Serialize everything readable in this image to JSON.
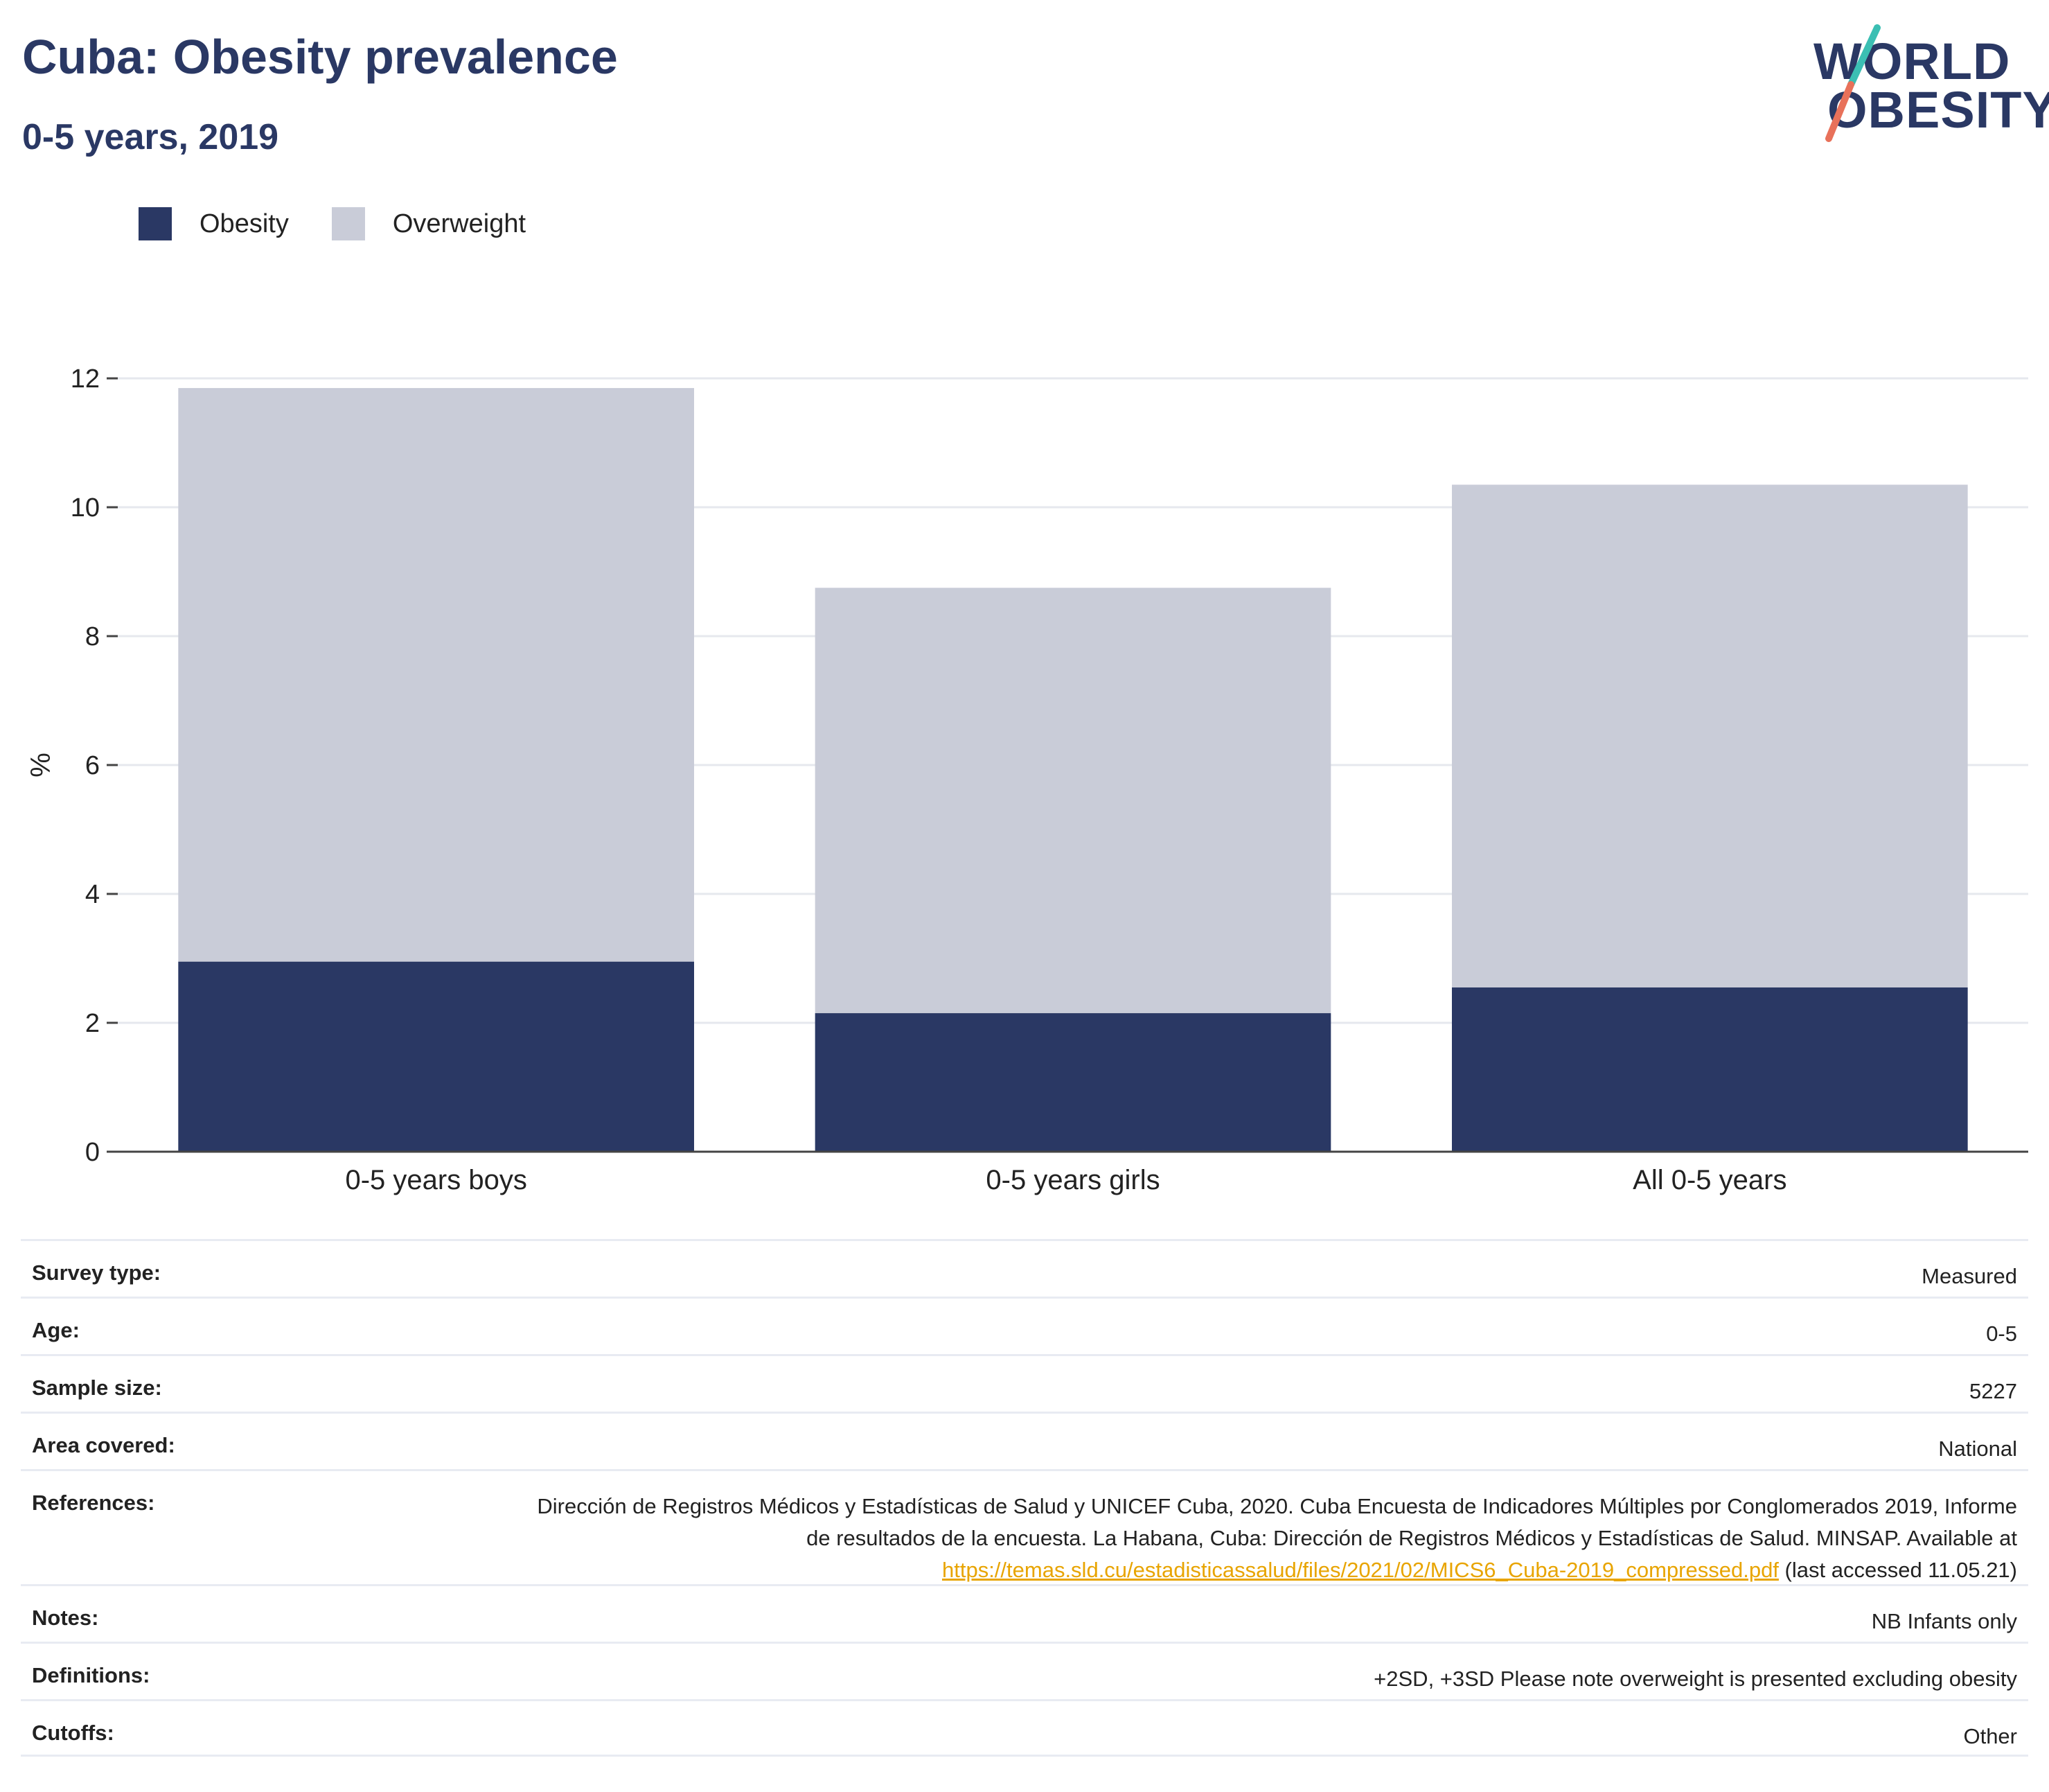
{
  "header": {
    "title": "Cuba: Obesity prevalence",
    "subtitle": "0-5 years, 2019"
  },
  "logo": {
    "line1": "WORLD",
    "line2": "OBESITY",
    "accent_teal": "#3bbfb3",
    "accent_coral": "#e8715a"
  },
  "legend": {
    "items": [
      {
        "label": "Obesity",
        "color": "#2a3864"
      },
      {
        "label": "Overweight",
        "color": "#c9ccd8"
      }
    ]
  },
  "chart_data": {
    "type": "bar",
    "stacked": true,
    "categories": [
      "0-5 years boys",
      "0-5 years girls",
      "All 0-5 years"
    ],
    "series": [
      {
        "name": "Obesity",
        "color": "#2a3864",
        "values": [
          2.95,
          2.15,
          2.55
        ]
      },
      {
        "name": "Overweight",
        "color": "#c9ccd8",
        "values": [
          8.9,
          6.6,
          7.8
        ]
      }
    ],
    "ylabel": "%",
    "ylim": [
      0,
      12
    ],
    "yticks": [
      0,
      2,
      4,
      6,
      8,
      10,
      12
    ],
    "grid": true,
    "legend_position": "top-left"
  },
  "info": {
    "rows": [
      {
        "key": "Survey type:",
        "value": "Measured"
      },
      {
        "key": "Age:",
        "value": "0-5"
      },
      {
        "key": "Sample size:",
        "value": "5227"
      },
      {
        "key": "Area covered:",
        "value": "National"
      }
    ],
    "references": {
      "key": "References:",
      "text_before": "Dirección de Registros Médicos y Estadísticas de Salud y UNICEF Cuba, 2020. Cuba Encuesta de Indicadores Múltiples por Conglomerados 2019, Informe de resultados de la encuesta. La Habana, Cuba: Dirección de Registros Médicos y Estadísticas de Salud. MINSAP. Available at ",
      "link": "https://temas.sld.cu/estadisticassalud/files/2021/02/MICS6_Cuba-2019_compressed.pdf",
      "text_after": " (last accessed 11.05.21)"
    },
    "rows2": [
      {
        "key": "Notes:",
        "value": "NB Infants only"
      },
      {
        "key": "Definitions:",
        "value": "+2SD, +3SD Please note overweight is presented excluding obesity"
      },
      {
        "key": "Cutoffs:",
        "value": "Other"
      }
    ]
  }
}
